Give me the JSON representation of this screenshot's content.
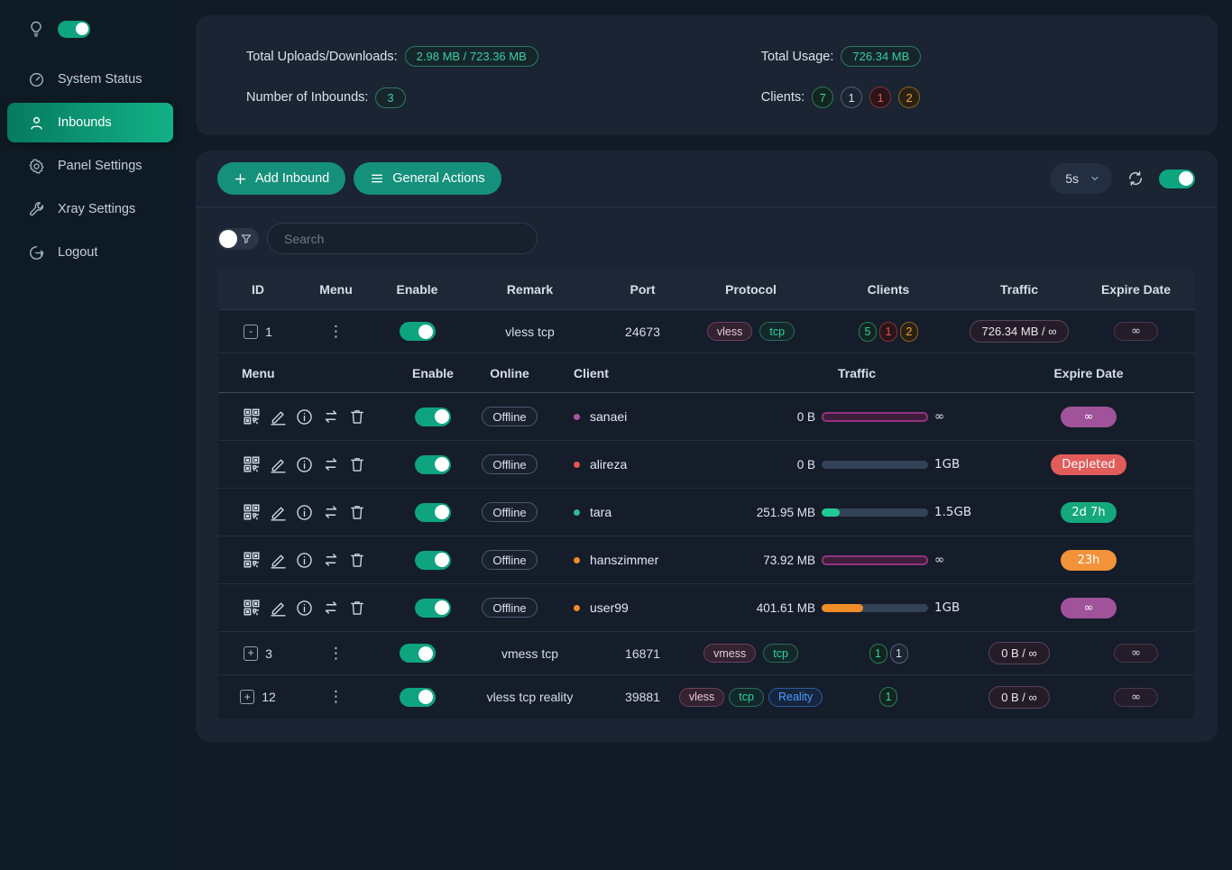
{
  "sidebar": {
    "items": [
      {
        "label": "System Status"
      },
      {
        "label": "Inbounds"
      },
      {
        "label": "Panel Settings"
      },
      {
        "label": "Xray Settings"
      },
      {
        "label": "Logout"
      }
    ]
  },
  "stats": {
    "total_label": "Total Uploads/Downloads:",
    "total_value": "2.98 MB / 723.36 MB",
    "inbounds_label": "Number of Inbounds:",
    "inbounds_value": "3",
    "usage_label": "Total Usage:",
    "usage_value": "726.34 MB",
    "clients_label": "Clients:",
    "clients": [
      "7",
      "1",
      "1",
      "2"
    ]
  },
  "toolbar": {
    "add_inbound": "Add Inbound",
    "general_actions": "General Actions",
    "refresh_interval": "5s"
  },
  "search": {
    "placeholder": "Search"
  },
  "table": {
    "headers": {
      "id": "ID",
      "menu": "Menu",
      "enable": "Enable",
      "remark": "Remark",
      "port": "Port",
      "protocol": "Protocol",
      "clients": "Clients",
      "traffic": "Traffic",
      "expire": "Expire Date"
    },
    "rows": [
      {
        "expand": "-",
        "id": "1",
        "remark": "vless tcp",
        "port": "24673",
        "protocols": [
          "vless",
          "tcp"
        ],
        "clients": [
          "5",
          "1",
          "2"
        ],
        "traffic": "726.34 MB / ∞",
        "expire": "∞"
      },
      {
        "expand": "+",
        "id": "3",
        "remark": "vmess tcp",
        "port": "16871",
        "protocols": [
          "vmess",
          "tcp"
        ],
        "clients": [
          "1",
          "1"
        ],
        "traffic": "0 B / ∞",
        "expire": "∞"
      },
      {
        "expand": "+",
        "id": "12",
        "remark": "vless tcp reality",
        "port": "39881",
        "protocols": [
          "vless",
          "tcp",
          "Reality"
        ],
        "clients": [
          "1"
        ],
        "traffic": "0 B / ∞",
        "expire": "∞"
      }
    ]
  },
  "client_table": {
    "headers": {
      "menu": "Menu",
      "enable": "Enable",
      "online": "Online",
      "client": "Client",
      "traffic": "Traffic",
      "expire": "Expire Date"
    },
    "rows": [
      {
        "status": "Offline",
        "name": "sanaei",
        "used": "0 B",
        "total": "∞",
        "bar_pct": 100,
        "expire": "∞"
      },
      {
        "status": "Offline",
        "name": "alireza",
        "used": "0 B",
        "total": "1GB",
        "bar_pct": 0,
        "expire": "Depleted"
      },
      {
        "status": "Offline",
        "name": "tara",
        "used": "251.95 MB",
        "total": "1.5GB",
        "bar_pct": 17,
        "expire": "2d 7h"
      },
      {
        "status": "Offline",
        "name": "hanszimmer",
        "used": "73.92 MB",
        "total": "∞",
        "bar_pct": 100,
        "expire": "23h"
      },
      {
        "status": "Offline",
        "name": "user99",
        "used": "401.61 MB",
        "total": "1GB",
        "bar_pct": 39,
        "expire": "∞"
      }
    ]
  },
  "colors": {
    "accent_green": "#10a37f",
    "button_green": "#15907a",
    "badge_green": "#35cf9e",
    "badge_red": "#e25650",
    "badge_orange": "#f0a132",
    "bar_purple": "#92337f",
    "bar_teal": "#20c997",
    "bar_orange": "#f08c28",
    "expire_purple": "#a0539a",
    "expire_red": "#e25c5a",
    "expire_green": "#15a87c",
    "expire_orange": "#f29339"
  }
}
